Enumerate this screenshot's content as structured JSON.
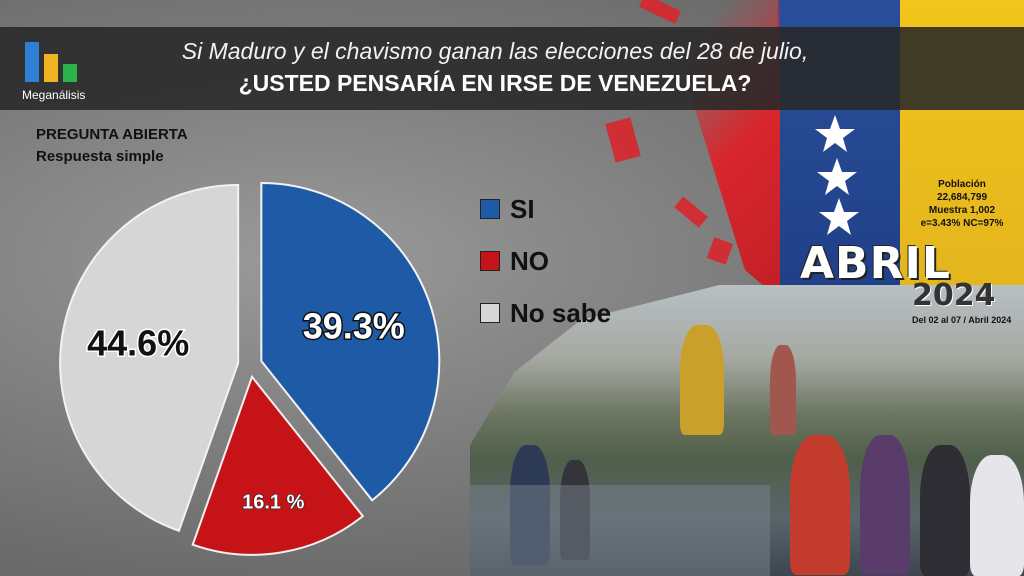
{
  "header": {
    "logo_text": "Meganálisis",
    "title_line1": "Si Maduro y el chavismo ganan las elecciones del 28 de julio,",
    "title_line2": "¿USTED PENSARÍA EN IRSE DE VENEZUELA?"
  },
  "question_type": {
    "line1": "PREGUNTA  ABIERTA",
    "line2": "Respuesta simple"
  },
  "survey_info": {
    "line1": "Población",
    "line2": "22,684,799",
    "line3": "Muestra 1,002",
    "line4": "e=3.43%  NC=97%"
  },
  "month": "ABRIL",
  "year": "2024",
  "date_range": "Del 02 al 07 / Abril 2024",
  "colors": {
    "si": "#1e5aa6",
    "no": "#c61318",
    "no_sabe": "#d6d6d6",
    "logo_blue": "#2f7fd6",
    "logo_yellow": "#f0b323",
    "logo_green": "#2db34a"
  },
  "chart_data": {
    "type": "pie",
    "exploded": true,
    "categories": [
      "SI",
      "NO",
      "No sabe"
    ],
    "values": [
      39.3,
      16.1,
      44.6
    ],
    "value_labels": [
      "39.3%",
      "16.1 %",
      "44.6%"
    ],
    "colors": [
      "#1e5aa6",
      "#c61318",
      "#d6d6d6"
    ],
    "legend_position": "right"
  }
}
